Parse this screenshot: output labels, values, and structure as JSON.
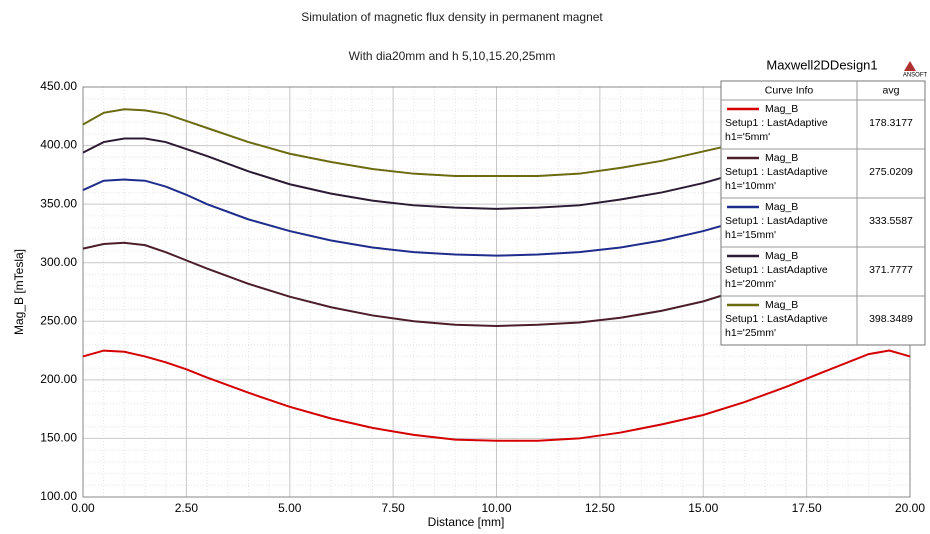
{
  "chart_data": {
    "type": "line",
    "title": "Simulation of magnetic flux density in permanent magnet",
    "subtitle": "With dia20mm and h 5,10,15.20,25mm",
    "design_name": "Maxwell2DDesign1",
    "logo_text": "ANSOFT",
    "xlabel": "Distance [mm]",
    "ylabel": "Mag_B [mTesla]",
    "legend_headers": [
      "Curve Info",
      "avg"
    ],
    "x": [
      0,
      0.5,
      1,
      1.5,
      2,
      2.5,
      3,
      4,
      5,
      6,
      7,
      8,
      9,
      10,
      11,
      12,
      13,
      14,
      15,
      16,
      17,
      18,
      19,
      19.5,
      20
    ],
    "series": [
      {
        "name": "Mag_B",
        "setup": "Setup1 : LastAdaptive",
        "param": "h1='5mm'",
        "avg": 178.3177,
        "color": "#d40000",
        "values": [
          220,
          225,
          224,
          220,
          215,
          209,
          202,
          189,
          177,
          167,
          159,
          153,
          149,
          148,
          148,
          150,
          155,
          162,
          170,
          181,
          194,
          208,
          222,
          225,
          220
        ]
      },
      {
        "name": "Mag_B",
        "setup": "Setup1 : LastAdaptive",
        "param": "h1='10mm'",
        "avg": 275.0209,
        "color": "#4b1e2a",
        "values": [
          312,
          316,
          317,
          315,
          309,
          302,
          295,
          282,
          271,
          262,
          255,
          250,
          247,
          246,
          247,
          249,
          253,
          259,
          267,
          278,
          290,
          303,
          314,
          316,
          312
        ]
      },
      {
        "name": "Mag_B",
        "setup": "Setup1 : LastAdaptive",
        "param": "h1='15mm'",
        "avg": 333.5587,
        "color": "#1e2c8c",
        "values": [
          362,
          370,
          371,
          370,
          365,
          358,
          350,
          337,
          327,
          319,
          313,
          309,
          307,
          306,
          307,
          309,
          313,
          319,
          327,
          337,
          350,
          362,
          370,
          370,
          362
        ]
      },
      {
        "name": "Mag_B",
        "setup": "Setup1 : LastAdaptive",
        "param": "h1='20mm'",
        "avg": 371.7777,
        "color": "#2b1b33",
        "values": [
          394,
          403,
          406,
          406,
          403,
          397,
          391,
          378,
          367,
          359,
          353,
          349,
          347,
          346,
          347,
          349,
          354,
          360,
          368,
          378,
          391,
          403,
          406,
          403,
          394
        ]
      },
      {
        "name": "Mag_B",
        "setup": "Setup1 : LastAdaptive",
        "param": "h1='25mm'",
        "avg": 398.3489,
        "color": "#6b6b10",
        "values": [
          418,
          428,
          431,
          430,
          427,
          421,
          415,
          403,
          393,
          386,
          380,
          376,
          374,
          374,
          374,
          376,
          381,
          387,
          395,
          403,
          415,
          427,
          431,
          428,
          418
        ]
      }
    ],
    "xlim": [
      0,
      20
    ],
    "xticks": [
      {
        "value": 0,
        "label": "0.00"
      },
      {
        "value": 2.5,
        "label": "2.50"
      },
      {
        "value": 5,
        "label": "5.00"
      },
      {
        "value": 7.5,
        "label": "7.50"
      },
      {
        "value": 10,
        "label": "10.00"
      },
      {
        "value": 12.5,
        "label": "12.50"
      },
      {
        "value": 15,
        "label": "15.00"
      },
      {
        "value": 17.5,
        "label": "17.50"
      },
      {
        "value": 20,
        "label": "20.00"
      }
    ],
    "ylim": [
      100,
      450
    ],
    "yticks": [
      {
        "value": 100,
        "label": "100.00"
      },
      {
        "value": 150,
        "label": "150.00"
      },
      {
        "value": 200,
        "label": "200.00"
      },
      {
        "value": 250,
        "label": "250.00"
      },
      {
        "value": 300,
        "label": "300.00"
      },
      {
        "value": 350,
        "label": "350.00"
      },
      {
        "value": 400,
        "label": "400.00"
      },
      {
        "value": 450,
        "label": "450.00"
      }
    ],
    "grid": true
  }
}
